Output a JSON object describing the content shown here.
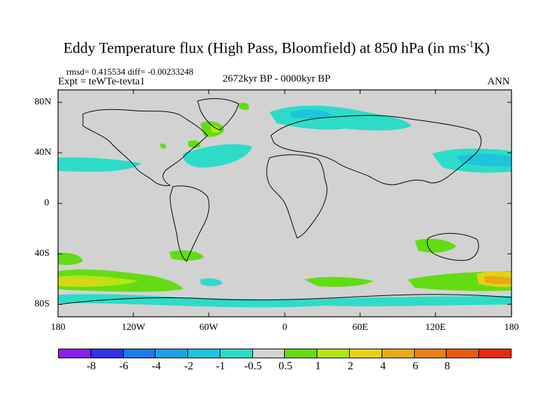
{
  "header": {
    "title_main": "Eddy Temperature flux (High Pass, Bloomfield) at 850 hPa (in ms",
    "title_sup": "-1",
    "title_end": "K)",
    "stats": "rmsd= 0.415534 diff= -0.00233248",
    "experiment": "Expt = teWTe-tevta1",
    "period": "2672kyr BP - 0000kyr BP",
    "season": "ANN"
  },
  "axes": {
    "lat_labels": [
      "80N",
      "40N",
      "0",
      "40S",
      "80S"
    ],
    "lon_labels": [
      "180",
      "120W",
      "60W",
      "0",
      "60E",
      "120E",
      "180"
    ]
  },
  "colorbar": {
    "labels": [
      "-8",
      "-6",
      "-4",
      "-2",
      "-1",
      "-0.5",
      "0.5",
      "1",
      "2",
      "4",
      "6",
      "8"
    ],
    "colors": [
      "#8a1ee6",
      "#3232e6",
      "#1e78e6",
      "#1ea0e6",
      "#1ec3dc",
      "#2ddcc8",
      "#d2d2d2",
      "#64dc14",
      "#b4e614",
      "#e6d214",
      "#e6aa14",
      "#e68214",
      "#e65a14",
      "#e62814"
    ]
  },
  "map": {
    "ocean_background": "#d2d2d2",
    "coastline_color": "#000000"
  }
}
